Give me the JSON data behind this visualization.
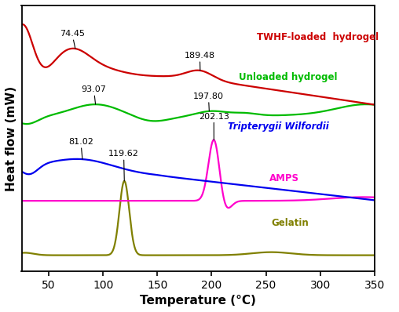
{
  "title": "",
  "xlabel": "Temperature (°C)",
  "ylabel": "Heat flow (mW)",
  "xlim": [
    25,
    350
  ],
  "x_ticks": [
    50,
    100,
    150,
    200,
    250,
    300,
    350
  ],
  "background_color": "#ffffff",
  "curves": {
    "gelatin": {
      "color": "#808000",
      "label": "Gelatin"
    },
    "amps": {
      "color": "#ff00cc",
      "label": "AMPS"
    },
    "twhf": {
      "color": "#0000ee",
      "label": "Tripterygii Wilfordii"
    },
    "unloaded": {
      "color": "#00bb00",
      "label": "Unloaded hydrogel"
    },
    "loaded": {
      "color": "#cc0000",
      "label": "TWHF-loaded  hydrogel"
    }
  },
  "annotations": {
    "gelatin_peak": {
      "x": 119.62,
      "label": "119.62"
    },
    "amps_peak": {
      "x": 202.13,
      "label": "202.13"
    },
    "twhf_peak": {
      "x": 81.02,
      "label": "81.02"
    },
    "unloaded_peak1": {
      "x": 93.07,
      "label": "93.07"
    },
    "unloaded_peak2": {
      "x": 197.8,
      "label": "197.80"
    },
    "loaded_peak1": {
      "x": 74.45,
      "label": "74.45"
    },
    "loaded_peak2": {
      "x": 189.48,
      "label": "189.48"
    }
  }
}
